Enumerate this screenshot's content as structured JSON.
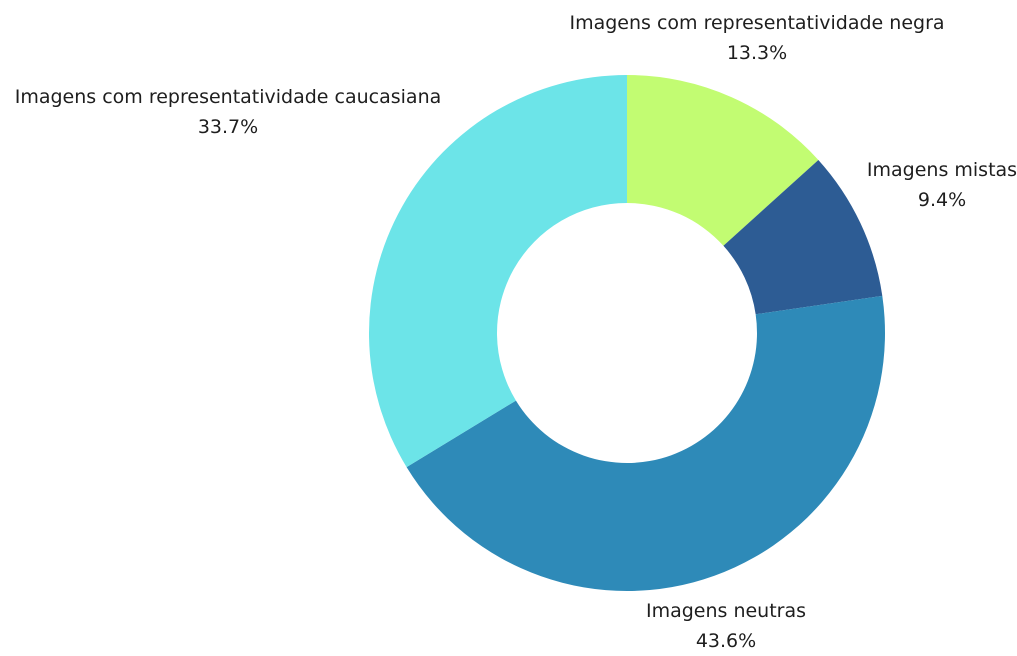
{
  "chart_data": {
    "type": "donut",
    "slices": [
      {
        "label": "Imagens com representatividade negra",
        "value": 13.3,
        "value_label": "13.3%",
        "color": "#c2fc72"
      },
      {
        "label": "Imagens mistas",
        "value": 9.4,
        "value_label": "9.4%",
        "color": "#2d5c94"
      },
      {
        "label": "Imagens neutras",
        "value": 43.6,
        "value_label": "43.6%",
        "color": "#2e8ab8"
      },
      {
        "label": "Imagens com representatividade caucasiana",
        "value": 33.7,
        "value_label": "33.7%",
        "color": "#6ce4e8"
      }
    ],
    "start_angle": "12 o'clock",
    "direction": "clockwise"
  }
}
